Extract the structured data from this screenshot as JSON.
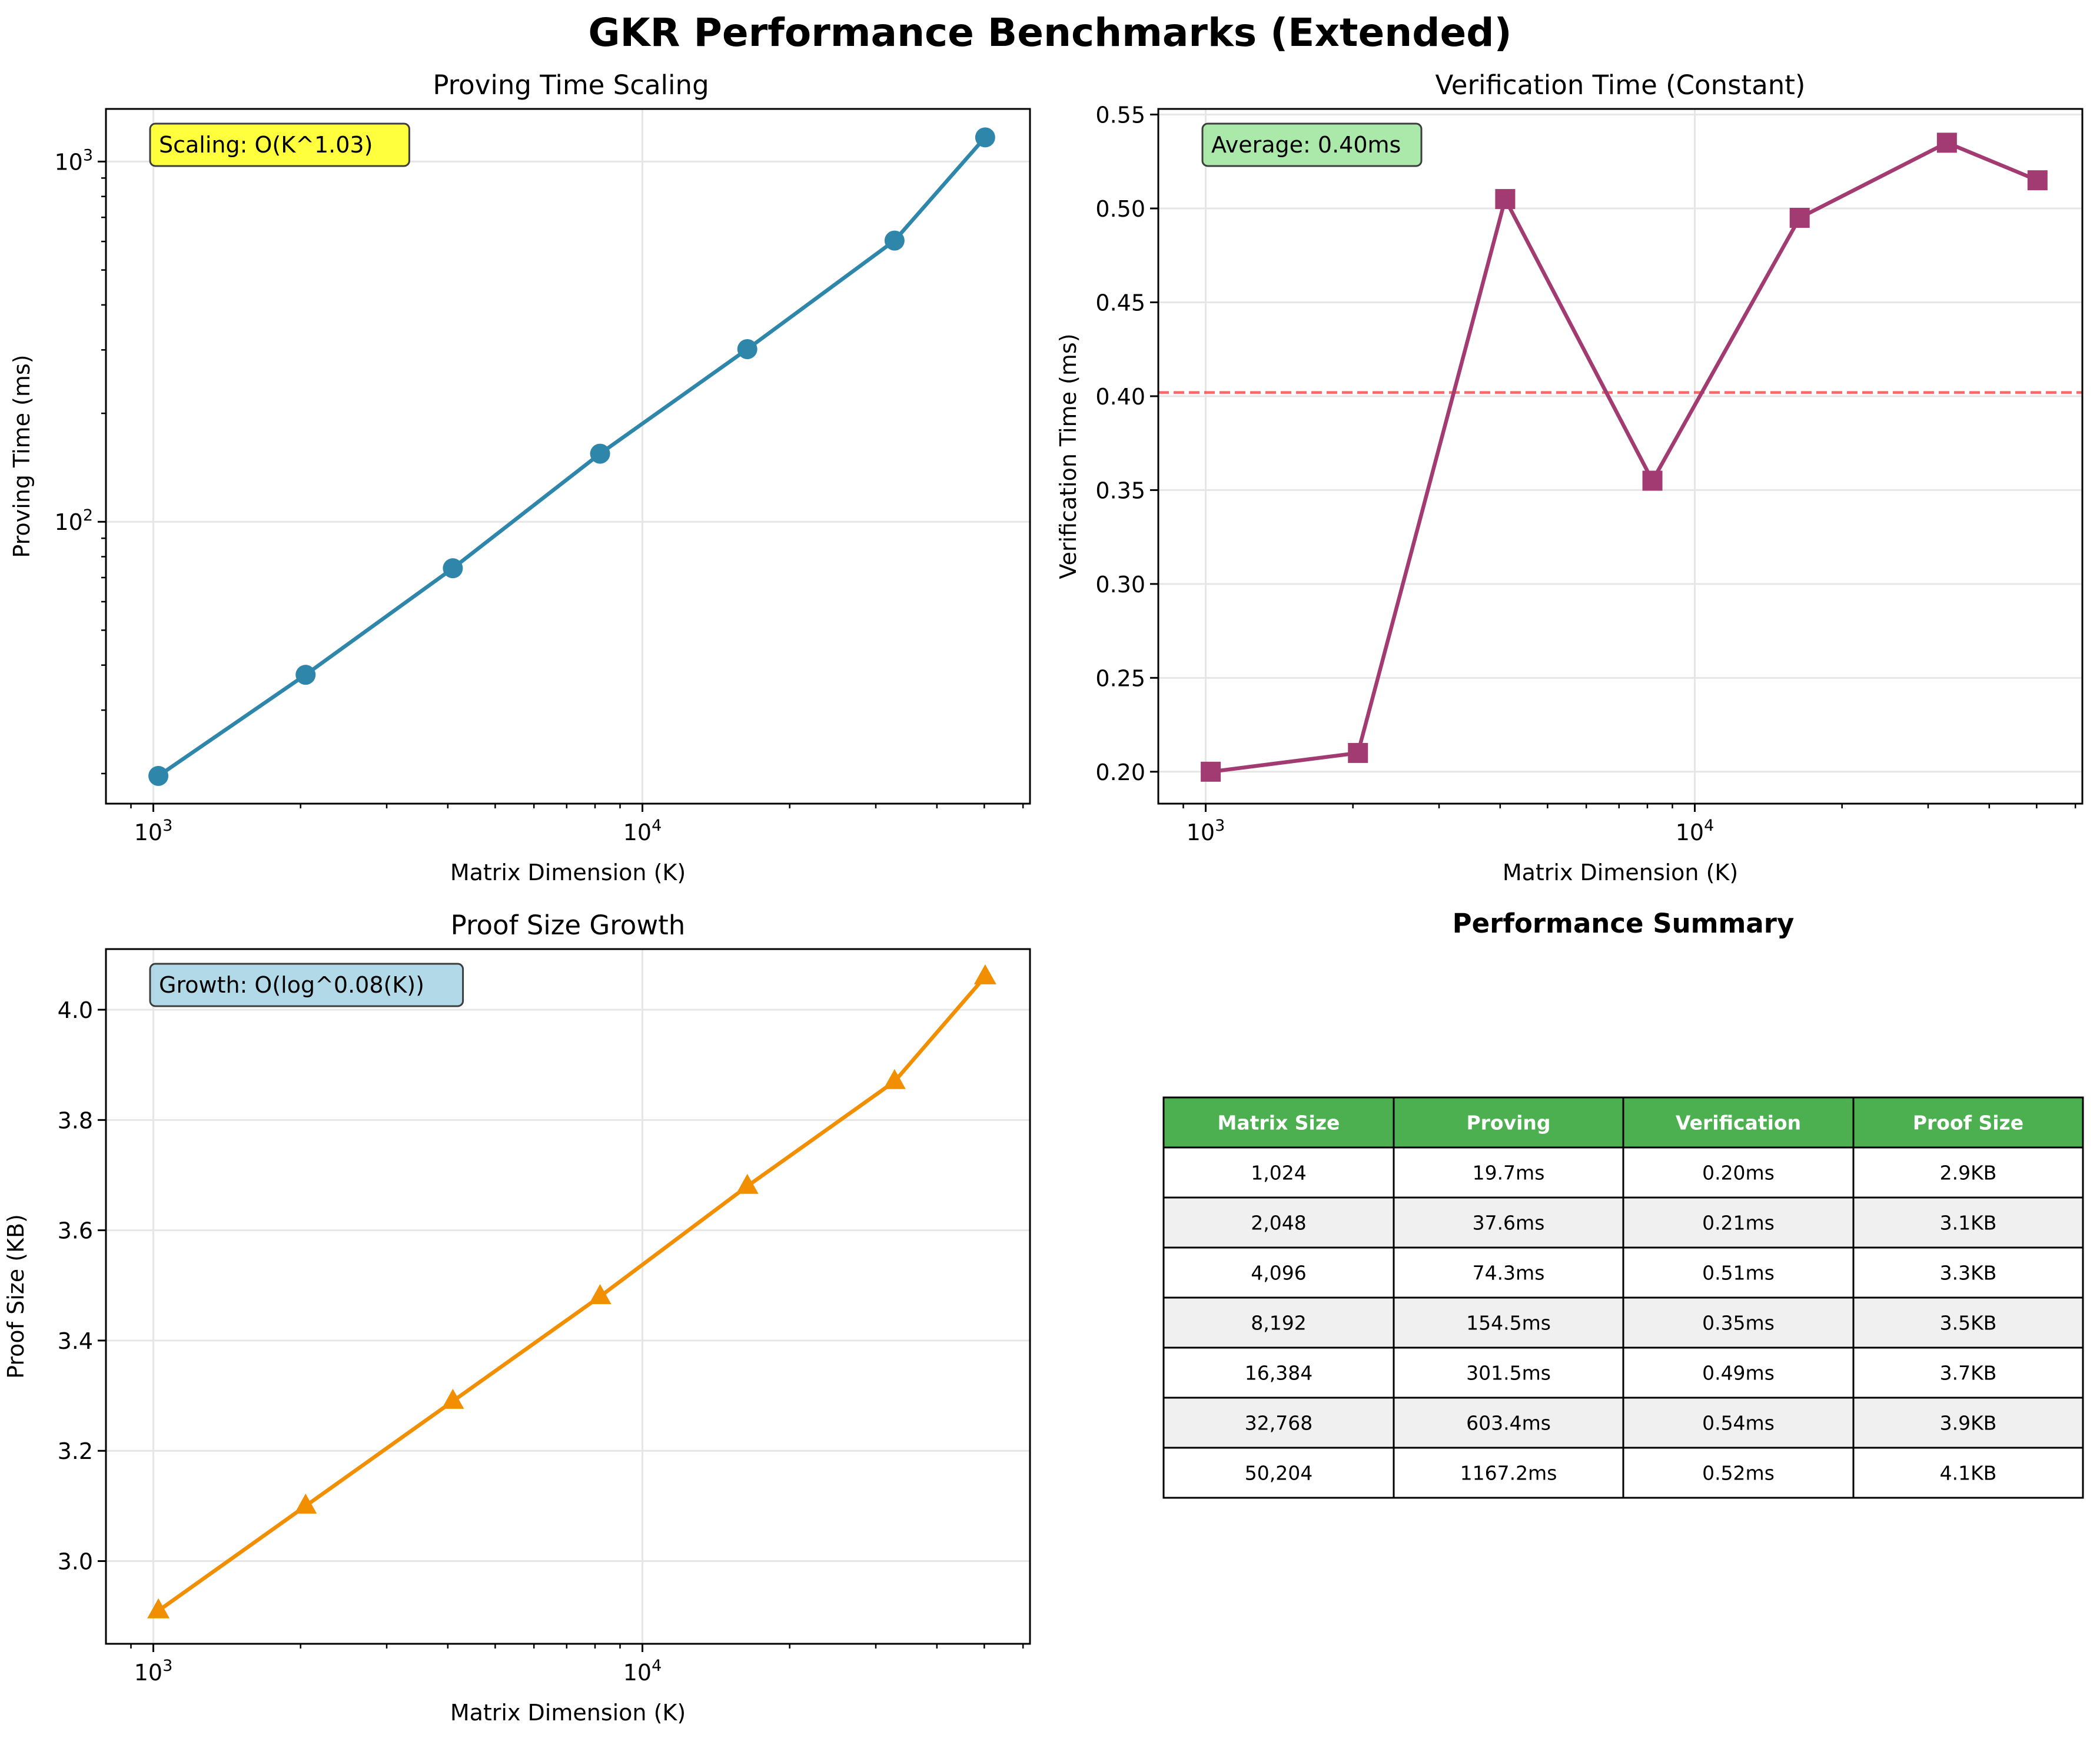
{
  "figure_title": "GKR Performance Benchmarks (Extended)",
  "x_tick_labels": [
    "10^3",
    "10^4"
  ],
  "panels": {
    "proving": {
      "title": "Proving Time Scaling",
      "xlabel": "Matrix Dimension (K)",
      "ylabel": "Proving Time (ms)",
      "annotation": "Scaling: O(K^1.03)",
      "annotation_color": "#ffff33",
      "y_tick_labels": [
        "10^2",
        "10^3"
      ]
    },
    "verification": {
      "title": "Verification Time (Constant)",
      "xlabel": "Matrix Dimension (K)",
      "ylabel": "Verification Time (ms)",
      "annotation": "Average: 0.40ms",
      "annotation_color": "#a6e8a6",
      "y_tick_labels": [
        "0.20",
        "0.25",
        "0.30",
        "0.35",
        "0.40",
        "0.45",
        "0.50",
        "0.55"
      ]
    },
    "proof_size": {
      "title": "Proof Size Growth",
      "xlabel": "Matrix Dimension (K)",
      "ylabel": "Proof Size (KB)",
      "annotation": "Growth: O(log^0.08(K))",
      "annotation_color": "#add8e6",
      "y_tick_labels": [
        "3.0",
        "3.2",
        "3.4",
        "3.6",
        "3.8",
        "4.0"
      ]
    }
  },
  "chart_data": [
    {
      "type": "line",
      "title": "Proving Time Scaling",
      "xlabel": "Matrix Dimension (K)",
      "ylabel": "Proving Time (ms)",
      "xscale": "log",
      "yscale": "log",
      "xlim": [
        800,
        62000
      ],
      "ylim": [
        16.5,
        1400
      ],
      "grid": true,
      "marker": "circle",
      "color": "#2e86ab",
      "x": [
        1024,
        2048,
        4096,
        8192,
        16384,
        32768,
        50204
      ],
      "y": [
        19.7,
        37.6,
        74.3,
        154.5,
        301.5,
        603.4,
        1167.2
      ]
    },
    {
      "type": "line",
      "title": "Verification Time (Constant)",
      "xlabel": "Matrix Dimension (K)",
      "ylabel": "Verification Time (ms)",
      "xscale": "log",
      "yscale": "linear",
      "xlim": [
        800,
        62000
      ],
      "ylim": [
        0.183,
        0.553
      ],
      "grid": true,
      "marker": "square",
      "color": "#a23b72",
      "x": [
        1024,
        2048,
        4096,
        8192,
        16384,
        32768,
        50204
      ],
      "y": [
        0.2,
        0.21,
        0.505,
        0.355,
        0.495,
        0.535,
        0.515
      ],
      "reference_line": {
        "y": 0.402,
        "style": "dashed",
        "color": "#ff3333"
      }
    },
    {
      "type": "line",
      "title": "Proof Size Growth",
      "xlabel": "Matrix Dimension (K)",
      "ylabel": "Proof Size (KB)",
      "xscale": "log",
      "yscale": "linear",
      "xlim": [
        800,
        62000
      ],
      "ylim": [
        2.85,
        4.11
      ],
      "grid": true,
      "marker": "triangle",
      "color": "#f18f01",
      "x": [
        1024,
        2048,
        4096,
        8192,
        16384,
        32768,
        50204
      ],
      "y": [
        2.91,
        3.1,
        3.29,
        3.48,
        3.68,
        3.87,
        4.06
      ]
    },
    {
      "type": "table",
      "title": "Performance Summary",
      "header_color": "#4caf50",
      "stripe_color": "#f0f0f0",
      "columns": [
        "Matrix Size",
        "Proving",
        "Verification",
        "Proof Size"
      ],
      "rows": [
        [
          "1,024",
          "19.7ms",
          "0.20ms",
          "2.9KB"
        ],
        [
          "2,048",
          "37.6ms",
          "0.21ms",
          "3.1KB"
        ],
        [
          "4,096",
          "74.3ms",
          "0.51ms",
          "3.3KB"
        ],
        [
          "8,192",
          "154.5ms",
          "0.35ms",
          "3.5KB"
        ],
        [
          "16,384",
          "301.5ms",
          "0.49ms",
          "3.7KB"
        ],
        [
          "32,768",
          "603.4ms",
          "0.54ms",
          "3.9KB"
        ],
        [
          "50,204",
          "1167.2ms",
          "0.52ms",
          "4.1KB"
        ]
      ]
    }
  ]
}
